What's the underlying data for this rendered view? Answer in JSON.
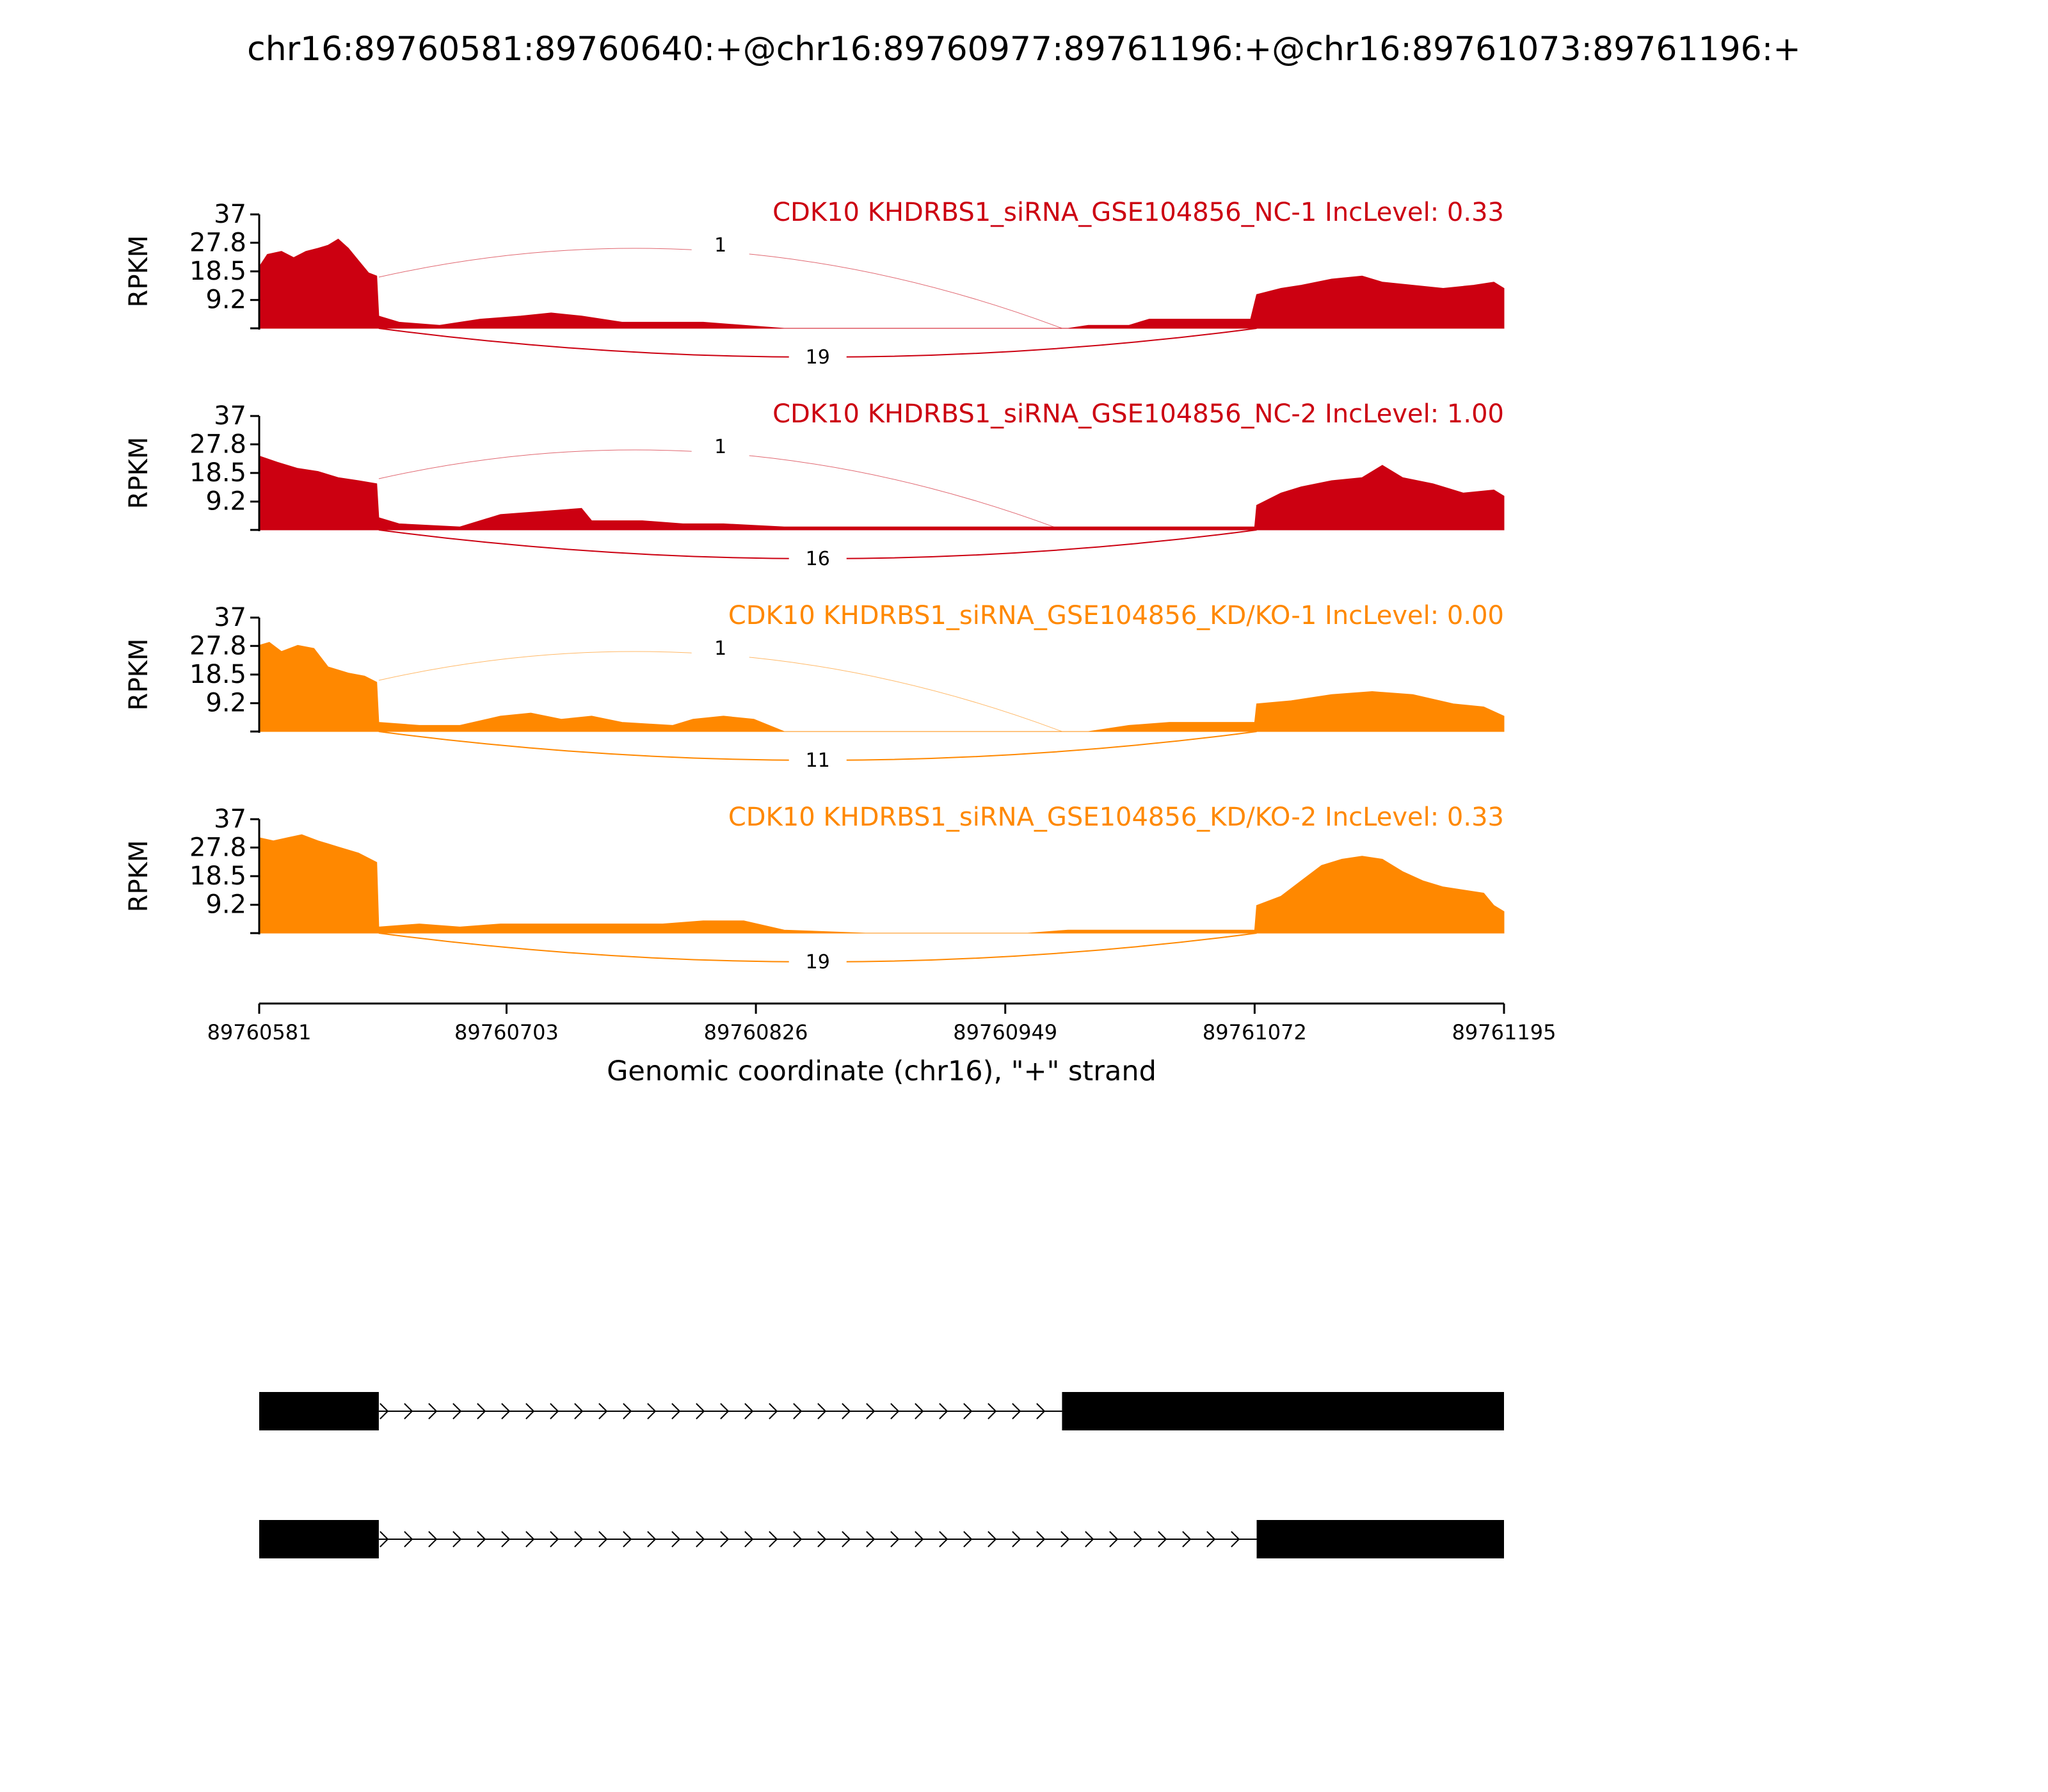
{
  "title": "chr16:89760581:89760640:+@chr16:89760977:89761196:+@chr16:89761073:89761196:+",
  "colors": {
    "nc": "#CC0011",
    "kd": "#FF8800",
    "axis": "#000000",
    "exon": "#000000"
  },
  "chart_data": {
    "type": "area",
    "title": "chr16:89760581:89760640:+@chr16:89760977:89761196:+@chr16:89761073:89761196:+",
    "xlabel": "Genomic coordinate (chr16), \"+\" strand",
    "ylabel": "RPKM",
    "xlim": [
      89760581,
      89761195
    ],
    "x_ticks": [
      "89760581",
      "89760703",
      "89760826",
      "89760949",
      "89761072",
      "89761195"
    ],
    "ylim": [
      0,
      37
    ],
    "y_ticks": [
      "37",
      "27.8",
      "18.5",
      "9.2"
    ],
    "samples": [
      {
        "label": "CDK10 KHDRBS1_siRNA_GSE104856_NC-1 IncLevel: 0.33",
        "color": "#CC0011",
        "coverage": [
          [
            89760581,
            20
          ],
          [
            89760585,
            24
          ],
          [
            89760592,
            25
          ],
          [
            89760598,
            23
          ],
          [
            89760604,
            25
          ],
          [
            89760610,
            26
          ],
          [
            89760615,
            27
          ],
          [
            89760620,
            29
          ],
          [
            89760625,
            26
          ],
          [
            89760630,
            22
          ],
          [
            89760635,
            18
          ],
          [
            89760639,
            17
          ],
          [
            89760640,
            4
          ],
          [
            89760650,
            2
          ],
          [
            89760670,
            1
          ],
          [
            89760690,
            3
          ],
          [
            89760710,
            4
          ],
          [
            89760725,
            5
          ],
          [
            89760740,
            4
          ],
          [
            89760760,
            2
          ],
          [
            89760780,
            2
          ],
          [
            89760800,
            2
          ],
          [
            89760840,
            0
          ],
          [
            89760980,
            0
          ],
          [
            89760990,
            1
          ],
          [
            89761010,
            1
          ],
          [
            89761020,
            3
          ],
          [
            89761040,
            3
          ],
          [
            89761070,
            3
          ],
          [
            89761073,
            11
          ],
          [
            89761085,
            13
          ],
          [
            89761095,
            14
          ],
          [
            89761110,
            16
          ],
          [
            89761125,
            17
          ],
          [
            89761135,
            15
          ],
          [
            89761150,
            14
          ],
          [
            89761165,
            13
          ],
          [
            89761180,
            14
          ],
          [
            89761190,
            15
          ],
          [
            89761195,
            13
          ]
        ],
        "junctions": [
          {
            "count": "1",
            "from": 89760640,
            "to": 89760977,
            "side": "above"
          },
          {
            "count": "19",
            "from": 89760640,
            "to": 89761073,
            "side": "below"
          }
        ]
      },
      {
        "label": "CDK10 KHDRBS1_siRNA_GSE104856_NC-2 IncLevel: 1.00",
        "color": "#CC0011",
        "coverage": [
          [
            89760581,
            24
          ],
          [
            89760590,
            22
          ],
          [
            89760600,
            20
          ],
          [
            89760610,
            19
          ],
          [
            89760620,
            17
          ],
          [
            89760630,
            16
          ],
          [
            89760639,
            15
          ],
          [
            89760640,
            4
          ],
          [
            89760650,
            2
          ],
          [
            89760680,
            1
          ],
          [
            89760700,
            5
          ],
          [
            89760720,
            6
          ],
          [
            89760740,
            7
          ],
          [
            89760745,
            3
          ],
          [
            89760770,
            3
          ],
          [
            89760790,
            2
          ],
          [
            89760810,
            2
          ],
          [
            89760840,
            1
          ],
          [
            89760980,
            1
          ],
          [
            89761000,
            1
          ],
          [
            89761050,
            1
          ],
          [
            89761072,
            1
          ],
          [
            89761073,
            8
          ],
          [
            89761085,
            12
          ],
          [
            89761095,
            14
          ],
          [
            89761110,
            16
          ],
          [
            89761125,
            17
          ],
          [
            89761135,
            21
          ],
          [
            89761145,
            17
          ],
          [
            89761160,
            15
          ],
          [
            89761175,
            12
          ],
          [
            89761190,
            13
          ],
          [
            89761195,
            11
          ]
        ],
        "junctions": [
          {
            "count": "1",
            "from": 89760640,
            "to": 89760977,
            "side": "above"
          },
          {
            "count": "16",
            "from": 89760640,
            "to": 89761073,
            "side": "below"
          }
        ]
      },
      {
        "label": "CDK10 KHDRBS1_siRNA_GSE104856_KD/KO-1 IncLevel: 0.00",
        "color": "#FF8800",
        "coverage": [
          [
            89760581,
            28
          ],
          [
            89760586,
            29
          ],
          [
            89760592,
            26
          ],
          [
            89760600,
            28
          ],
          [
            89760608,
            27
          ],
          [
            89760615,
            21
          ],
          [
            89760625,
            19
          ],
          [
            89760633,
            18
          ],
          [
            89760639,
            16
          ],
          [
            89760640,
            3
          ],
          [
            89760660,
            2
          ],
          [
            89760680,
            2
          ],
          [
            89760700,
            5
          ],
          [
            89760715,
            6
          ],
          [
            89760730,
            4
          ],
          [
            89760745,
            5
          ],
          [
            89760760,
            3
          ],
          [
            89760785,
            2
          ],
          [
            89760795,
            4
          ],
          [
            89760810,
            5
          ],
          [
            89760825,
            4
          ],
          [
            89760840,
            0
          ],
          [
            89760990,
            0
          ],
          [
            89761010,
            2
          ],
          [
            89761030,
            3
          ],
          [
            89761072,
            3
          ],
          [
            89761073,
            9
          ],
          [
            89761090,
            10
          ],
          [
            89761110,
            12
          ],
          [
            89761130,
            13
          ],
          [
            89761150,
            12
          ],
          [
            89761170,
            9
          ],
          [
            89761185,
            8
          ],
          [
            89761195,
            5
          ]
        ],
        "junctions": [
          {
            "count": "1",
            "from": 89760640,
            "to": 89760977,
            "side": "above"
          },
          {
            "count": "11",
            "from": 89760640,
            "to": 89761073,
            "side": "below"
          }
        ]
      },
      {
        "label": "CDK10 KHDRBS1_siRNA_GSE104856_KD/KO-2 IncLevel: 0.33",
        "color": "#FF8800",
        "coverage": [
          [
            89760581,
            31
          ],
          [
            89760588,
            30
          ],
          [
            89760595,
            31
          ],
          [
            89760602,
            32
          ],
          [
            89760610,
            30
          ],
          [
            89760620,
            28
          ],
          [
            89760630,
            26
          ],
          [
            89760639,
            23
          ],
          [
            89760640,
            2
          ],
          [
            89760660,
            3
          ],
          [
            89760680,
            2
          ],
          [
            89760700,
            3
          ],
          [
            89760720,
            3
          ],
          [
            89760740,
            3
          ],
          [
            89760760,
            3
          ],
          [
            89760780,
            3
          ],
          [
            89760800,
            4
          ],
          [
            89760820,
            4
          ],
          [
            89760840,
            1
          ],
          [
            89760880,
            0
          ],
          [
            89760960,
            0
          ],
          [
            89760980,
            1
          ],
          [
            89761020,
            1
          ],
          [
            89761072,
            1
          ],
          [
            89761073,
            9
          ],
          [
            89761085,
            12
          ],
          [
            89761095,
            17
          ],
          [
            89761105,
            22
          ],
          [
            89761115,
            24
          ],
          [
            89761125,
            25
          ],
          [
            89761135,
            24
          ],
          [
            89761145,
            20
          ],
          [
            89761155,
            17
          ],
          [
            89761165,
            15
          ],
          [
            89761175,
            14
          ],
          [
            89761185,
            13
          ],
          [
            89761190,
            9
          ],
          [
            89761195,
            7
          ]
        ],
        "junctions": [
          {
            "count": "19",
            "from": 89760640,
            "to": 89761073,
            "side": "below"
          }
        ]
      }
    ],
    "gene_models": [
      {
        "exons": [
          [
            89760581,
            89760640
          ],
          [
            89760977,
            89761195
          ]
        ]
      },
      {
        "exons": [
          [
            89760581,
            89760640
          ],
          [
            89761073,
            89761195
          ]
        ]
      }
    ]
  }
}
